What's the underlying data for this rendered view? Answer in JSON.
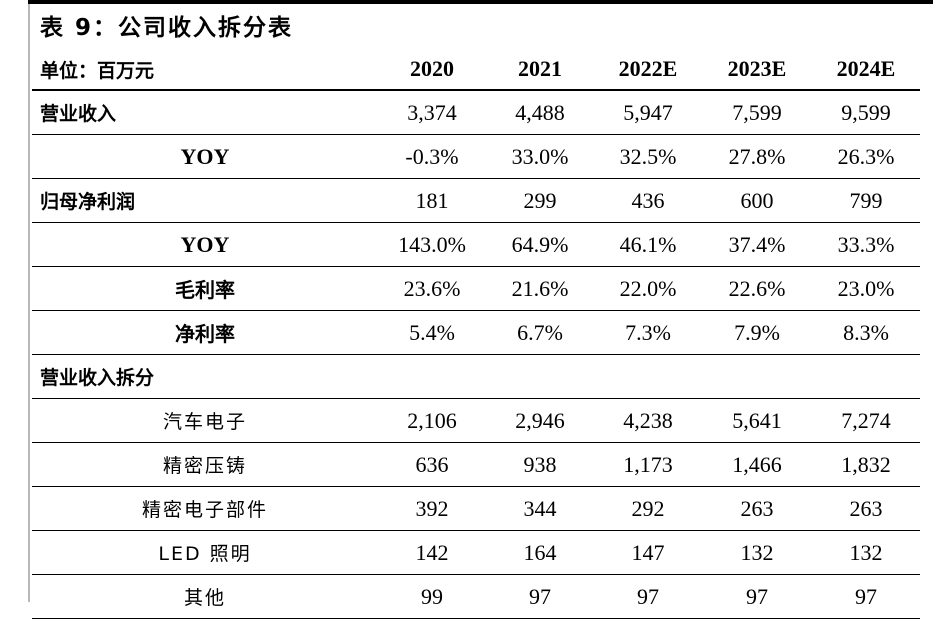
{
  "title": "表 9：公司收入拆分表",
  "header": {
    "unit_label": "单位：百万元",
    "years": [
      "2020",
      "2021",
      "2022E",
      "2023E",
      "2024E"
    ]
  },
  "rows": [
    {
      "label": "营业收入",
      "values": [
        "3,374",
        "4,488",
        "5,947",
        "7,599",
        "9,599"
      ]
    },
    {
      "label": "YOY",
      "values": [
        "-0.3%",
        "33.0%",
        "32.5%",
        "27.8%",
        "26.3%"
      ]
    },
    {
      "label": "归母净利润",
      "values": [
        "181",
        "299",
        "436",
        "600",
        "799"
      ]
    },
    {
      "label": "YOY",
      "values": [
        "143.0%",
        "64.9%",
        "46.1%",
        "37.4%",
        "33.3%"
      ]
    },
    {
      "label": "毛利率",
      "values": [
        "23.6%",
        "21.6%",
        "22.0%",
        "22.6%",
        "23.0%"
      ]
    },
    {
      "label": "净利率",
      "values": [
        "5.4%",
        "6.7%",
        "7.3%",
        "7.9%",
        "8.3%"
      ]
    },
    {
      "label": "营业收入拆分",
      "values": [
        "",
        "",
        "",
        "",
        ""
      ]
    },
    {
      "label": "汽车电子",
      "values": [
        "2,106",
        "2,946",
        "4,238",
        "5,641",
        "7,274"
      ]
    },
    {
      "label": "精密压铸",
      "values": [
        "636",
        "938",
        "1,173",
        "1,466",
        "1,832"
      ]
    },
    {
      "label": "精密电子部件",
      "values": [
        "392",
        "344",
        "292",
        "263",
        "263"
      ]
    },
    {
      "label": "LED 照明",
      "values": [
        "142",
        "164",
        "147",
        "132",
        "132"
      ]
    },
    {
      "label": "其他",
      "values": [
        "99",
        "97",
        "97",
        "97",
        "97"
      ]
    }
  ]
}
